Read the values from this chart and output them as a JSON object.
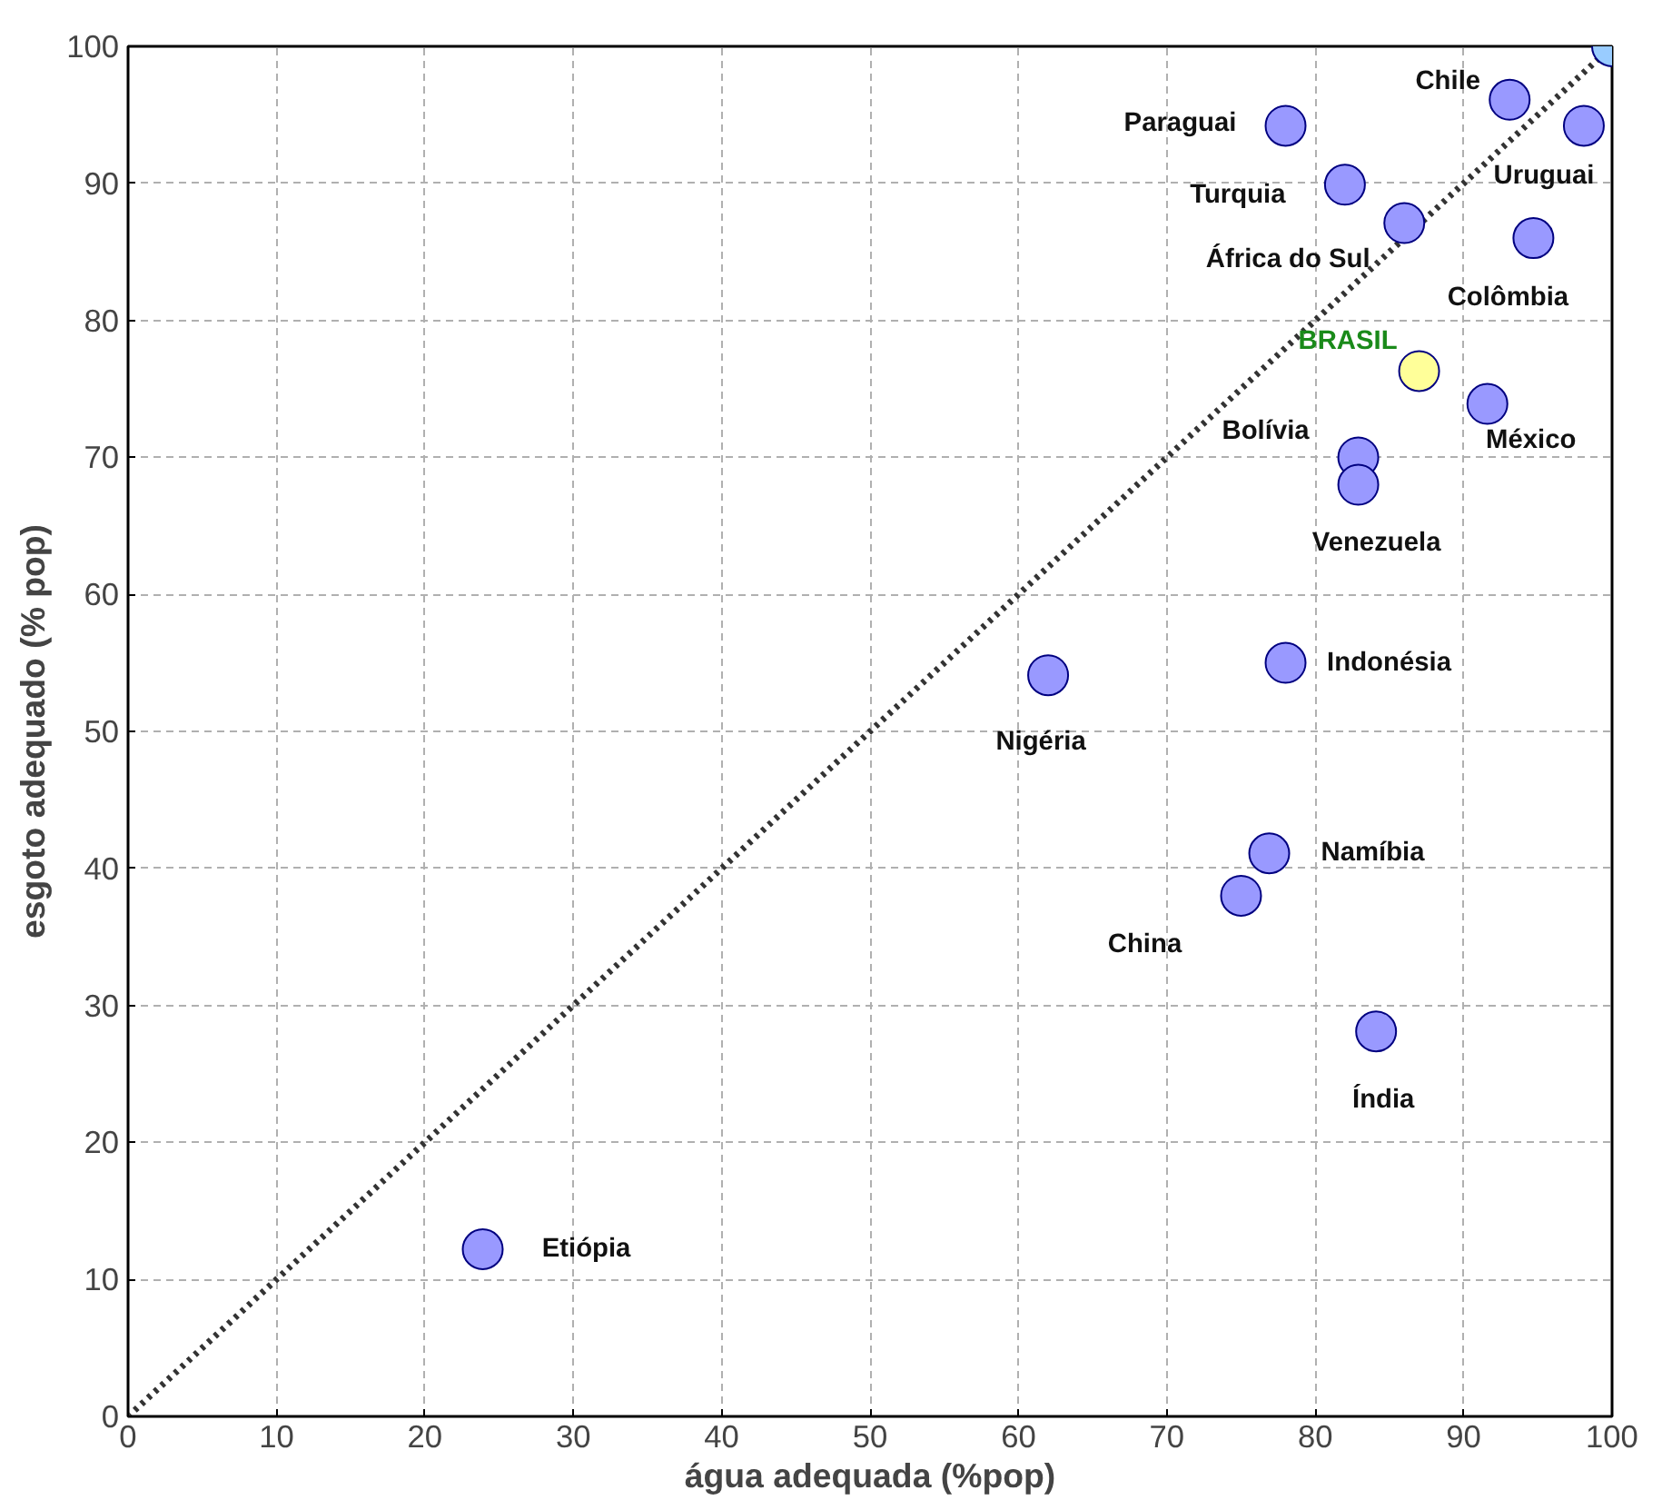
{
  "chart_data": {
    "type": "scatter",
    "xlabel": "água adequada (%pop)",
    "ylabel": "esgoto adequado (% pop)",
    "xlim": [
      0,
      100
    ],
    "ylim": [
      0,
      100
    ],
    "xticks": [
      0,
      10,
      20,
      30,
      40,
      50,
      60,
      70,
      80,
      90,
      100
    ],
    "yticks": [
      0,
      10,
      20,
      30,
      40,
      50,
      60,
      70,
      80,
      90,
      100
    ],
    "grid": true,
    "marker": "circle",
    "series": [
      {
        "type": "line",
        "line_style": "dotted",
        "marker": "none",
        "color": "#333333",
        "x": [
          0,
          100
        ],
        "values": [
          0,
          100
        ]
      },
      {
        "color": "#9999ff",
        "x": [
          93.1,
          78.0,
          98.1,
          82.0,
          86.0,
          94.7,
          91.6,
          82.9,
          82.9,
          78.0,
          62.0,
          76.9,
          75.0,
          84.1,
          23.9
        ],
        "values": [
          96.1,
          94.2,
          94.2,
          89.9,
          87.1,
          86.0,
          73.9,
          70.0,
          68.0,
          55.0,
          54.1,
          41.1,
          38.0,
          28.1,
          12.2
        ]
      },
      {
        "color": "#99ccff",
        "x": [
          100
        ],
        "values": [
          100
        ]
      },
      {
        "name": "BRASIL",
        "color": "#ffff99",
        "x": [
          87.0
        ],
        "values": [
          76.3
        ]
      }
    ],
    "annotations": [
      {
        "text": "Chile",
        "x": 93.1,
        "y": 96.1
      },
      {
        "text": "Paraguai",
        "x": 78.0,
        "y": 94.2
      },
      {
        "text": "Uruguai",
        "x": 98.1,
        "y": 94.2
      },
      {
        "text": "Turquia",
        "x": 82.0,
        "y": 89.9
      },
      {
        "text": "África do Sul",
        "x": 86.0,
        "y": 87.1
      },
      {
        "text": "Colômbia",
        "x": 94.7,
        "y": 86.0
      },
      {
        "text": "México",
        "x": 91.6,
        "y": 73.9
      },
      {
        "text": "Bolívia",
        "x": 82.9,
        "y": 70.0
      },
      {
        "text": "Venezuela",
        "x": 82.9,
        "y": 68.0
      },
      {
        "text": "Indonésia",
        "x": 78.0,
        "y": 55.0
      },
      {
        "text": "Nigéria",
        "x": 62.0,
        "y": 54.1
      },
      {
        "text": "Namíbia",
        "x": 76.9,
        "y": 41.1
      },
      {
        "text": "China",
        "x": 75.0,
        "y": 38.0
      },
      {
        "text": "Índia",
        "x": 84.1,
        "y": 28.1
      },
      {
        "text": "Etiópia",
        "x": 23.9,
        "y": 12.2
      }
    ]
  }
}
